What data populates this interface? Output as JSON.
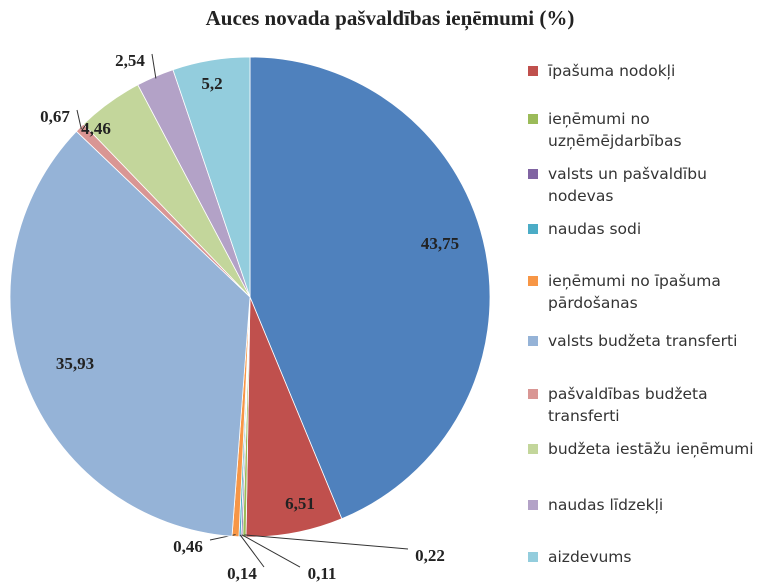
{
  "chart_data": {
    "type": "pie",
    "title": "Auces novada pašvaldības ieņēmumi (%)",
    "categories": [
      null,
      "īpašuma nodokļi",
      "ieņēmumi no uzņēmējdarbības",
      "valsts un pašvaldību nodevas",
      "naudas sodi",
      "ieņēmumi no īpašuma pārdošanas",
      "valsts budžeta transferti",
      "pašvaldības budžeta transferti",
      "budžeta iestāžu ieņēmumi",
      "naudas līdzekļi",
      "aizdevums"
    ],
    "values": [
      43.75,
      6.51,
      0.22,
      0.11,
      0.14,
      0.46,
      35.93,
      0.67,
      4.46,
      2.54,
      5.2
    ],
    "value_labels": [
      "43,75",
      "6,51",
      "0,22",
      "0,11",
      "0,14",
      "0,46",
      "35,93",
      "0,67",
      "4,46",
      "2,54",
      "5,2"
    ],
    "colors": [
      "#4f81bd",
      "#c0504d",
      "#9bbb59",
      "#8064a2",
      "#4bacc6",
      "#f79646",
      "#95b3d7",
      "#d99694",
      "#c3d69b",
      "#b3a2c7",
      "#93cddd"
    ]
  }
}
